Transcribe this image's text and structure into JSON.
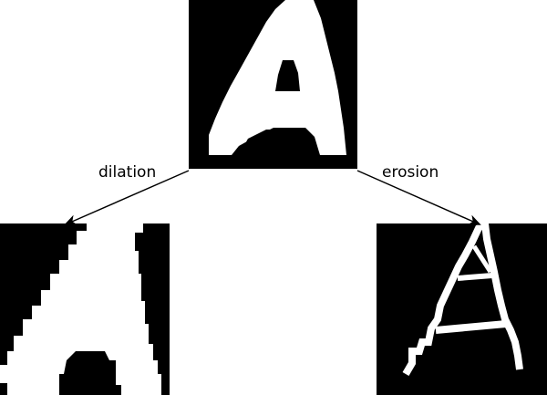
{
  "labels": {
    "left_operation": "dilation",
    "right_operation": "erosion"
  },
  "colors": {
    "foreground": "#ffffff",
    "background": "#000000",
    "page": "#ffffff",
    "arrow": "#000000"
  },
  "panels": [
    {
      "role": "original",
      "glyph": "A"
    },
    {
      "role": "dilated",
      "glyph": "A"
    },
    {
      "role": "eroded",
      "glyph": "A"
    }
  ]
}
